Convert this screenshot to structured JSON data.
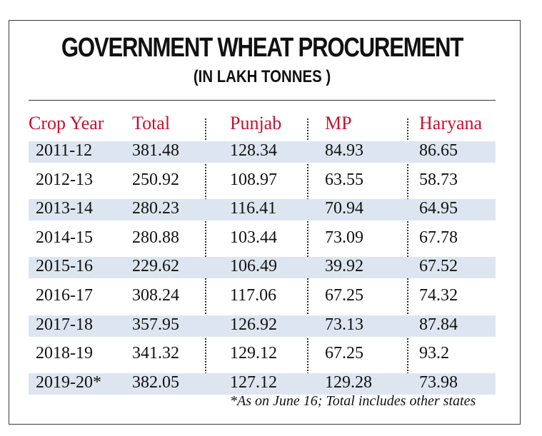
{
  "chart_data": {
    "type": "table",
    "title": "GOVERNMENT WHEAT PROCUREMENT",
    "subtitle": "(IN LAKH TONNES )",
    "columns": [
      "Crop Year",
      "Total",
      "Punjab",
      "MP",
      "Haryana"
    ],
    "rows": [
      [
        "2011-12",
        "381.48",
        "128.34",
        "84.93",
        "86.65"
      ],
      [
        "2012-13",
        "250.92",
        "108.97",
        "63.55",
        "58.73"
      ],
      [
        "2013-14",
        "280.23",
        "116.41",
        "70.94",
        "64.95"
      ],
      [
        "2014-15",
        "280.88",
        "103.44",
        "73.09",
        "67.78"
      ],
      [
        "2015-16",
        "229.62",
        "106.49",
        "39.92",
        "67.52"
      ],
      [
        "2016-17",
        "308.24",
        "117.06",
        "67.25",
        "74.32"
      ],
      [
        "2017-18",
        "357.95",
        "126.92",
        "73.13",
        "87.84"
      ],
      [
        "2018-19",
        "341.32",
        "129.12",
        "67.25",
        "93.2"
      ],
      [
        "2019-20*",
        "382.05",
        "127.12",
        "129.28",
        "73.98"
      ]
    ],
    "footnote": "*As on June 16; Total includes other states",
    "header_color": "#c8102e",
    "stripe_color": "#dde6f0"
  }
}
